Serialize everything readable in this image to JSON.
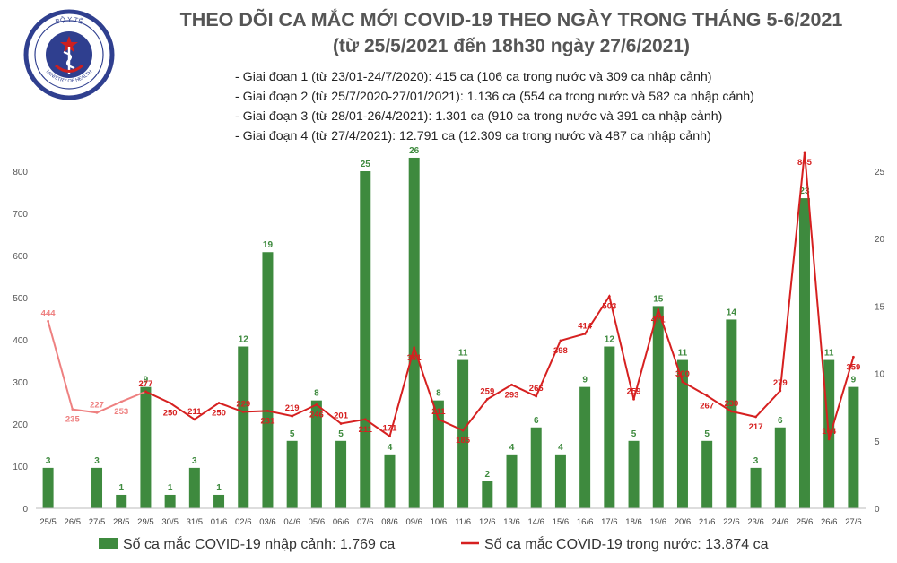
{
  "header": {
    "title": "THEO DÕI CA MẮC MỚI COVID-19 THEO NGÀY TRONG THÁNG 5-6/2021",
    "subtitle": "(từ 25/5/2021 đến 18h30 ngày 27/6/2021)",
    "logo_text_top": "BỘ Y TẾ",
    "logo_text_bottom": "MINISTRY OF HEALTH",
    "phases": [
      "- Giai đoạn 1 (từ 23/01-24/7/2020): 415 ca (106 ca trong nước và 309 ca nhập cảnh)",
      "- Giai đoạn 2 (từ 25/7/2020-27/01/2021): 1.136 ca (554 ca trong nước và 582 ca nhập cảnh)",
      "- Giai đoạn 3 (từ 28/01-26/4/2021): 1.301 ca (910 ca trong nước và 391 ca nhập cảnh)",
      "- Giai đoạn 4 (từ 27/4/2021): 12.791 ca (12.309 ca trong nước và 487 ca nhập cảnh)"
    ]
  },
  "colors": {
    "bar": "#3e8a3e",
    "line_current": "#d62020",
    "line_early": "#ee8080",
    "title": "#555555",
    "logo_blue": "#2f3f8f",
    "logo_red": "#cc2020"
  },
  "chart_data": {
    "type": "bar",
    "categories": [
      "25/5",
      "26/5",
      "27/5",
      "28/5",
      "29/5",
      "30/5",
      "31/5",
      "01/6",
      "02/6",
      "03/6",
      "04/6",
      "05/6",
      "06/6",
      "07/6",
      "08/6",
      "09/6",
      "10/6",
      "11/6",
      "12/6",
      "13/6",
      "14/6",
      "15/6",
      "16/6",
      "17/6",
      "18/6",
      "19/6",
      "20/6",
      "21/6",
      "22/6",
      "23/6",
      "24/6",
      "25/6",
      "26/6",
      "27/6"
    ],
    "bar_series": {
      "name": "Số ca mắc COVID-19 nhập cảnh: 1.769 ca",
      "axis": "right",
      "values": [
        3,
        0,
        3,
        1,
        9,
        1,
        3,
        1,
        12,
        19,
        5,
        8,
        5,
        25,
        4,
        26,
        8,
        11,
        2,
        4,
        6,
        4,
        9,
        12,
        5,
        15,
        11,
        5,
        14,
        3,
        6,
        23,
        11,
        9
      ],
      "labels": [
        "3",
        "",
        "3",
        "1",
        "9",
        "1",
        "3",
        "1",
        "12",
        "19",
        "5",
        "8",
        "5",
        "25",
        "4",
        "26",
        "8",
        "11",
        "2",
        "4",
        "6",
        "4",
        "9",
        "12",
        "5",
        "15",
        "11",
        "5",
        "14",
        "3",
        "6",
        "23",
        "11",
        "9"
      ]
    },
    "line_series": {
      "name": "Số ca mắc COVID-19 trong nước: 13.874 ca",
      "axis": "left",
      "values": [
        444,
        235,
        227,
        253,
        277,
        250,
        211,
        250,
        229,
        231,
        219,
        246,
        201,
        211,
        171,
        381,
        211,
        185,
        259,
        293,
        266,
        398,
        414,
        503,
        259,
        471,
        300,
        267,
        230,
        217,
        279,
        845,
        164,
        359
      ]
    },
    "y_left": {
      "min": 0,
      "max": 800,
      "ticks": [
        "0",
        "100",
        "200",
        "300",
        "400",
        "500",
        "600",
        "700",
        "800"
      ]
    },
    "y_right": {
      "min": 0,
      "max": 25,
      "ticks": [
        "0",
        "5",
        "10",
        "15",
        "20",
        "25"
      ]
    },
    "legend": {
      "bars": "Số ca mắc COVID-19 nhập cảnh: 1.769 ca",
      "line": "Số ca mắc COVID-19 trong nước: 13.874 ca"
    }
  }
}
